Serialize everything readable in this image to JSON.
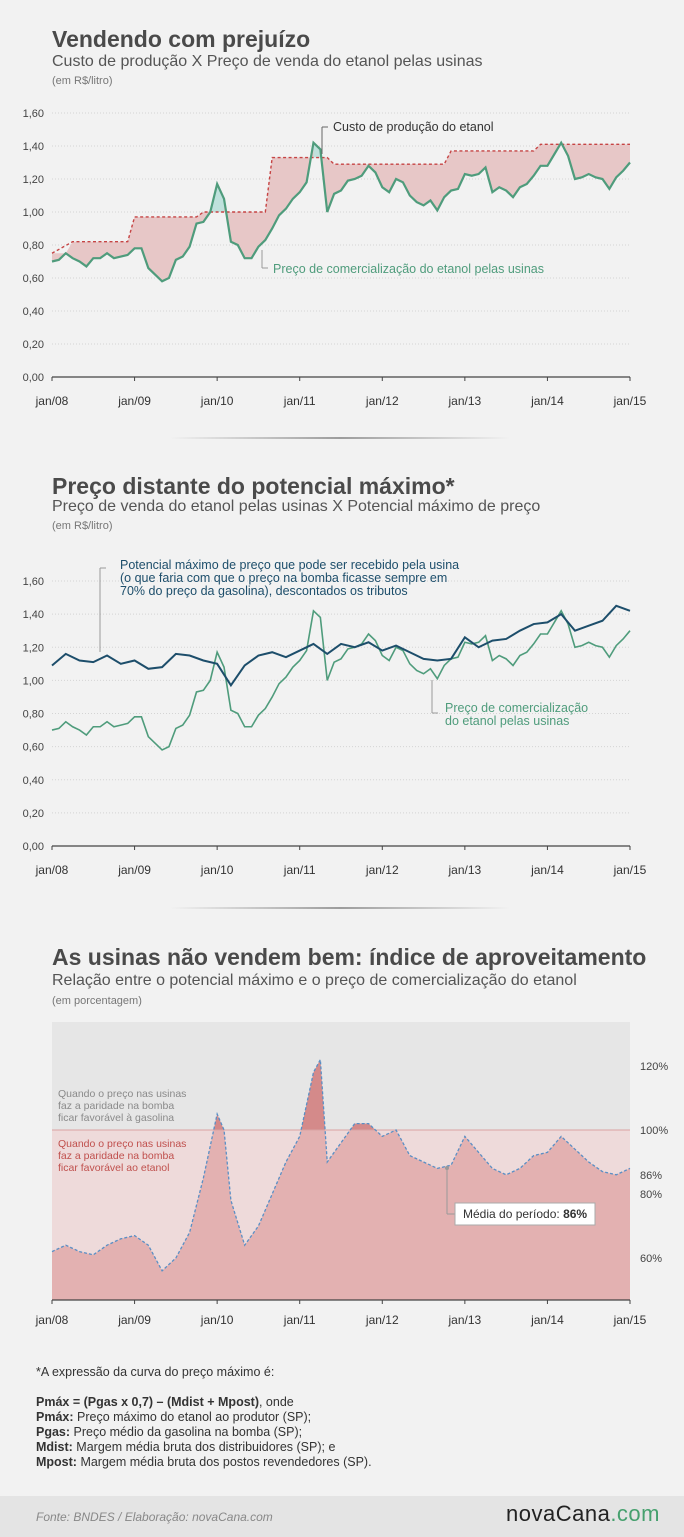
{
  "labels": {
    "xticks": [
      "jan/08",
      "jan/09",
      "jan/10",
      "jan/11",
      "jan/12",
      "jan/13",
      "jan/14",
      "jan/15"
    ]
  },
  "sections": [
    {
      "title": "Vendendo com prejuízo",
      "subtitle": "Custo de produção X Preço de venda do etanol pelas usinas",
      "unit": "(em R$/litro)",
      "annotation_cost": "Custo de produção do etanol",
      "annotation_price": "Preço de comercialização do etanol pelas usinas"
    },
    {
      "title": "Preço distante do potencial máximo*",
      "subtitle": "Preço de venda do etanol pelas usinas X Potencial máximo de preço",
      "unit": "(em R$/litro)",
      "annotation_max_1": "Potencial máximo de preço que pode ser recebido pela usina",
      "annotation_max_2": "(o que faria com que o preço na bomba ficasse sempre em",
      "annotation_max_3": "70% do preço da gasolina), descontados os tributos",
      "annotation_price_1": "Preço de comercialização",
      "annotation_price_2": "do etanol pelas usinas"
    },
    {
      "title": "As usinas não vendem bem: índice de aproveitamento",
      "subtitle": "Relação entre o potencial máximo e o preço de comercialização do etanol",
      "unit": "(em porcentagem)",
      "zone_upper_1": "Quando o preço nas usinas",
      "zone_upper_2": "faz a paridade na bomba",
      "zone_upper_3": "ficar favorável à gasolina",
      "zone_lower_1": "Quando o preço nas usinas",
      "zone_lower_2": "faz a paridade na bomba",
      "zone_lower_3": "ficar favorável ao etanol",
      "avg_label": "Média do período:",
      "avg_value": "86%"
    }
  ],
  "notes": {
    "intro": "*A expressão da curva do preço máximo é:",
    "formula_bold": "Pmáx = (Pgas x 0,7) – (Mdist + Mpost)",
    "formula_rest": ", onde",
    "defs": [
      {
        "term": "Pmáx:",
        "text": " Preço máximo do etanol ao produtor (SP);"
      },
      {
        "term": "Pgas:",
        "text": " Preço médio da gasolina na bomba (SP);"
      },
      {
        "term": "Mdist:",
        "text": " Margem média bruta dos distribuidores (SP); e"
      },
      {
        "term": "Mpost:",
        "text": " Margem média bruta dos postos revendedores (SP)."
      }
    ]
  },
  "footer": {
    "source": "Fonte: BNDES / Elaboração: novaCana.com",
    "logo_main": "novaCana",
    "logo_suffix": ".com"
  },
  "chart_data": [
    {
      "type": "line",
      "title": "Vendendo com prejuízo",
      "ylim": [
        0,
        1.6
      ],
      "yticks": [
        "0,00",
        "0,20",
        "0,40",
        "0,60",
        "0,80",
        "1,00",
        "1,20",
        "1,40",
        "1,60"
      ],
      "x_start": "2008-01",
      "x_end": "2015-01",
      "x_unit": "months since jan/08",
      "series": [
        {
          "name": "Custo de produção do etanol",
          "style": "step-dashed",
          "color": "#c0392b",
          "x": [
            0,
            3,
            11,
            12,
            21,
            22,
            31,
            32,
            40,
            41,
            47,
            48,
            57,
            58,
            70,
            71,
            84
          ],
          "values": [
            0.75,
            0.82,
            0.82,
            0.97,
            0.97,
            1.0,
            1.0,
            1.33,
            1.33,
            1.29,
            1.29,
            1.29,
            1.29,
            1.37,
            1.37,
            1.41,
            1.41
          ]
        },
        {
          "name": "Preço de comercialização do etanol pelas usinas",
          "color": "#4f9c7c",
          "x": [
            0,
            1,
            2,
            3,
            4,
            5,
            6,
            7,
            8,
            9,
            10,
            11,
            12,
            13,
            14,
            15,
            16,
            17,
            18,
            19,
            20,
            21,
            22,
            23,
            24,
            25,
            26,
            27,
            28,
            29,
            30,
            31,
            32,
            33,
            34,
            35,
            36,
            37,
            38,
            39,
            40,
            41,
            42,
            43,
            44,
            45,
            46,
            47,
            48,
            49,
            50,
            51,
            52,
            53,
            54,
            55,
            56,
            57,
            58,
            59,
            60,
            61,
            62,
            63,
            64,
            65,
            66,
            67,
            68,
            69,
            70,
            71,
            72,
            73,
            74,
            75,
            76,
            77,
            78,
            79,
            80,
            81,
            82,
            83,
            84
          ],
          "values": [
            0.7,
            0.71,
            0.75,
            0.72,
            0.7,
            0.67,
            0.72,
            0.72,
            0.75,
            0.72,
            0.73,
            0.74,
            0.78,
            0.78,
            0.66,
            0.62,
            0.58,
            0.6,
            0.71,
            0.73,
            0.79,
            0.93,
            0.94,
            1.0,
            1.17,
            1.08,
            0.82,
            0.8,
            0.72,
            0.72,
            0.79,
            0.83,
            0.9,
            0.98,
            1.02,
            1.08,
            1.12,
            1.18,
            1.42,
            1.38,
            1.0,
            1.11,
            1.13,
            1.19,
            1.2,
            1.22,
            1.28,
            1.24,
            1.15,
            1.12,
            1.2,
            1.18,
            1.1,
            1.06,
            1.04,
            1.07,
            1.01,
            1.09,
            1.13,
            1.14,
            1.23,
            1.22,
            1.23,
            1.27,
            1.12,
            1.15,
            1.13,
            1.09,
            1.15,
            1.17,
            1.22,
            1.28,
            1.28,
            1.35,
            1.42,
            1.34,
            1.2,
            1.21,
            1.23,
            1.21,
            1.2,
            1.14,
            1.21,
            1.25,
            1.3
          ]
        }
      ]
    },
    {
      "type": "line",
      "title": "Preço distante do potencial máximo*",
      "ylim": [
        0,
        1.6
      ],
      "yticks": [
        "0,00",
        "0,20",
        "0,40",
        "0,60",
        "0,80",
        "1,00",
        "1,20",
        "1,40",
        "1,60"
      ],
      "x_start": "2008-01",
      "x_end": "2015-01",
      "x_unit": "months since jan/08",
      "series": [
        {
          "name": "Potencial máximo de preço",
          "color": "#1d4e6b",
          "x": [
            0,
            2,
            4,
            6,
            8,
            10,
            12,
            14,
            16,
            18,
            20,
            22,
            24,
            26,
            28,
            30,
            32,
            34,
            36,
            38,
            40,
            42,
            44,
            46,
            48,
            50,
            52,
            54,
            56,
            58,
            60,
            62,
            64,
            66,
            68,
            70,
            72,
            74,
            76,
            78,
            80,
            82,
            84
          ],
          "values": [
            1.09,
            1.16,
            1.12,
            1.11,
            1.15,
            1.1,
            1.12,
            1.07,
            1.08,
            1.16,
            1.15,
            1.12,
            1.1,
            0.97,
            1.09,
            1.15,
            1.17,
            1.14,
            1.18,
            1.22,
            1.16,
            1.22,
            1.2,
            1.23,
            1.18,
            1.21,
            1.17,
            1.13,
            1.12,
            1.13,
            1.26,
            1.2,
            1.24,
            1.25,
            1.3,
            1.34,
            1.35,
            1.4,
            1.3,
            1.33,
            1.36,
            1.45,
            1.42
          ]
        },
        {
          "name": "Preço de comercialização do etanol pelas usinas",
          "color": "#4f9c7c",
          "same_as": "chart_data[0].series[1]"
        }
      ]
    },
    {
      "type": "area",
      "title": "As usinas não vendem bem: índice de aproveitamento",
      "ylim": [
        45,
        130
      ],
      "yticks": [
        "60%",
        "80%",
        "86%",
        "100%",
        "120%"
      ],
      "reference_line": 100,
      "average": 86,
      "x_start": "2008-01",
      "x_end": "2015-01",
      "x_unit": "months since jan/08",
      "series": [
        {
          "name": "Índice de aproveitamento",
          "x": [
            0,
            2,
            4,
            6,
            8,
            10,
            12,
            14,
            16,
            18,
            20,
            22,
            24,
            25,
            26,
            28,
            30,
            32,
            34,
            36,
            38,
            39,
            40,
            42,
            44,
            46,
            48,
            50,
            52,
            54,
            56,
            58,
            60,
            62,
            64,
            66,
            68,
            70,
            72,
            74,
            76,
            78,
            80,
            82,
            84
          ],
          "values": [
            62,
            64,
            62,
            61,
            64,
            66,
            67,
            64,
            56,
            60,
            68,
            85,
            105,
            100,
            78,
            64,
            70,
            80,
            90,
            98,
            118,
            122,
            90,
            96,
            102,
            102,
            98,
            100,
            92,
            90,
            88,
            89,
            98,
            93,
            88,
            86,
            88,
            92,
            93,
            98,
            94,
            90,
            87,
            86,
            88
          ]
        }
      ]
    }
  ]
}
